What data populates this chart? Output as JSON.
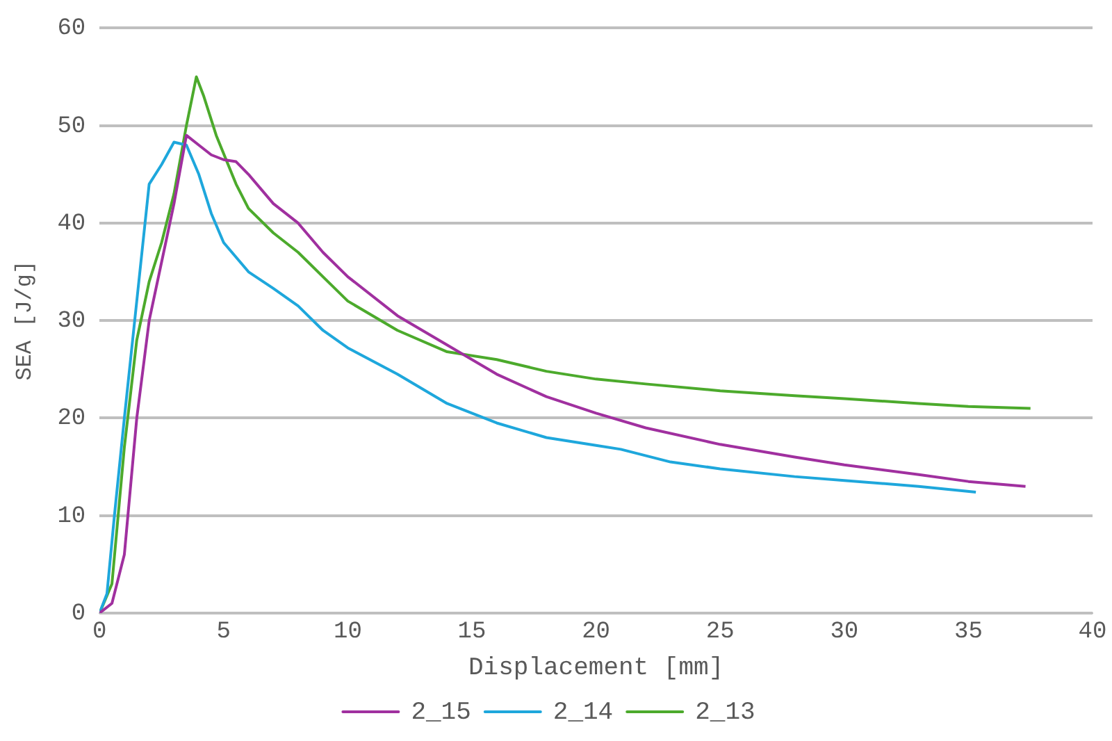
{
  "chart_data": {
    "type": "line",
    "xlabel": "Displacement [mm]",
    "ylabel": "SEA [J/g]",
    "xlim": [
      0,
      40
    ],
    "xticks": [
      0,
      5,
      10,
      15,
      20,
      25,
      30,
      35,
      40
    ],
    "ylim": [
      0,
      60
    ],
    "yticks": [
      0,
      10,
      20,
      30,
      40,
      50,
      60
    ],
    "grid": "y",
    "legend": "bottom",
    "marker": "none",
    "line_style": "solid",
    "series": [
      {
        "name": "2_15",
        "color": "#a0309f",
        "x": [
          0,
          0.5,
          1,
          1.5,
          2,
          2.5,
          3,
          3.5,
          4,
          4.5,
          5,
          5.5,
          6,
          7,
          8,
          9,
          10,
          12,
          14,
          16,
          18,
          20,
          22,
          25,
          28,
          30,
          33,
          35,
          37.3
        ],
        "values": [
          0,
          1,
          6,
          20,
          30,
          36,
          42,
          49,
          48,
          47,
          46.5,
          46.3,
          45,
          42,
          40,
          37,
          34.5,
          30.5,
          27.5,
          24.5,
          22.2,
          20.5,
          19,
          17.3,
          16,
          15.2,
          14.2,
          13.5,
          13
        ]
      },
      {
        "name": "2_14",
        "color": "#1ea7dc",
        "x": [
          0,
          0.3,
          0.6,
          1,
          1.5,
          2,
          2.5,
          3,
          3.5,
          4,
          4.5,
          5,
          6,
          7,
          8,
          9,
          10,
          12,
          14,
          16,
          18,
          20,
          21,
          23,
          25,
          28,
          30,
          33,
          35.3
        ],
        "values": [
          0,
          2,
          10,
          20,
          32,
          44,
          46,
          48.3,
          48,
          45,
          41,
          38,
          35,
          33.3,
          31.5,
          29,
          27.2,
          24.5,
          21.5,
          19.5,
          18,
          17.2,
          16.8,
          15.5,
          14.8,
          14,
          13.6,
          13,
          12.4
        ]
      },
      {
        "name": "2_13",
        "color": "#4caa2c",
        "x": [
          0,
          0.5,
          1,
          1.5,
          2,
          2.5,
          3,
          3.5,
          3.9,
          4.2,
          4.7,
          5.5,
          6,
          7,
          8,
          9,
          10,
          12,
          14,
          16,
          18,
          20,
          22,
          25,
          28,
          30,
          33,
          35,
          37.5
        ],
        "values": [
          0,
          3,
          17,
          28,
          34,
          38,
          43,
          50,
          55,
          53,
          49,
          44,
          41.5,
          39,
          37,
          34.5,
          32,
          29,
          26.8,
          26,
          24.8,
          24,
          23.5,
          22.8,
          22.3,
          22,
          21.5,
          21.2,
          21
        ]
      }
    ]
  }
}
